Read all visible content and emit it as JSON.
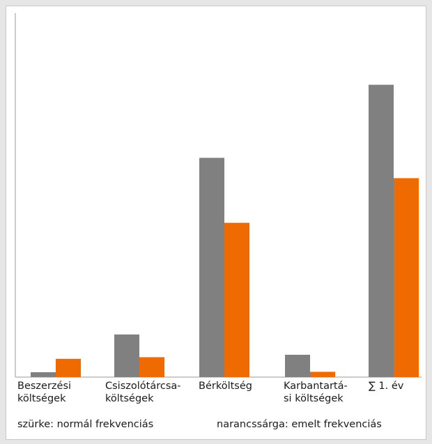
{
  "colors": {
    "normal": "#808080",
    "increased": "#ef6a00"
  },
  "chart_data": {
    "type": "bar",
    "categories": [
      "Beszerzési\nköltségek",
      "Csiszolótárcsa-\nköltségek",
      "Bérköltség",
      "Karbantartá-\nsi költségek",
      "∑ 1. év"
    ],
    "series": [
      {
        "values": [
          1.2,
          10.5,
          54,
          5.5,
          72
        ]
      },
      {
        "values": [
          4.5,
          4.9,
          38,
          1.3,
          49
        ]
      }
    ],
    "ylim": [
      0,
      80
    ],
    "grid": false
  },
  "legend": {
    "normal": "szürke: normál frekvenciás",
    "increased": "narancssárga: emelt frekvenciás"
  }
}
